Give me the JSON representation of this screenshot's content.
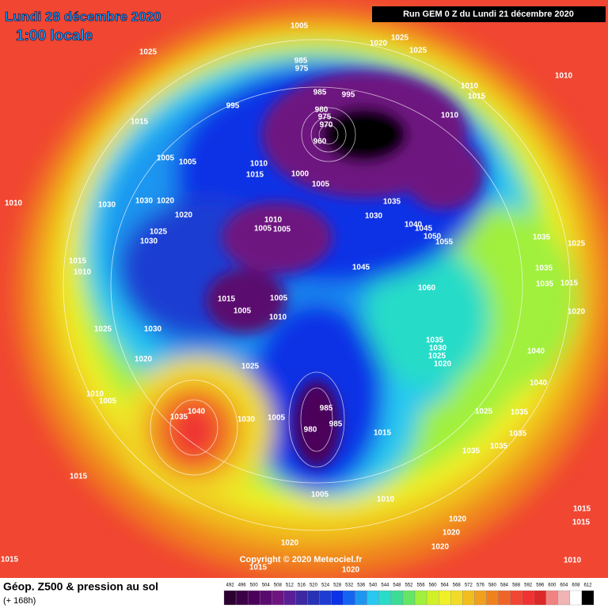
{
  "header": {
    "title": "Lundi 28 décembre 2020",
    "subtitle": "1:00 locale",
    "run": "Run GEM 0 Z du Lundi 21 décembre 2020"
  },
  "copyright": "Copyright © 2020 Meteociel.fr",
  "footer": {
    "title": "Géop. Z500 & pression au sol",
    "forecast": "(+ 168h)"
  },
  "colorbar": {
    "values": [
      492,
      496,
      500,
      504,
      508,
      512,
      516,
      520,
      524,
      528,
      532,
      536,
      540,
      544,
      548,
      552,
      556,
      560,
      564,
      568,
      572,
      576,
      580,
      584,
      588,
      592,
      596,
      600,
      604,
      608,
      612
    ],
    "colors": [
      "#2b0030",
      "#3c0046",
      "#4b005a",
      "#5a0a6e",
      "#6e1480",
      "#5a1e96",
      "#3c28a0",
      "#2832b4",
      "#1e3cd2",
      "#0a32e6",
      "#1464f0",
      "#1e96f0",
      "#28c8f0",
      "#28dcc8",
      "#3cdc96",
      "#64e664",
      "#a0f03c",
      "#d2f028",
      "#f0f028",
      "#f0dc28",
      "#f0be1e",
      "#f0a01e",
      "#f0821e",
      "#f06428",
      "#f04632",
      "#f03232",
      "#dc2828",
      "#f08282",
      "#f0b4b4",
      "#ffffff",
      "#000000"
    ]
  },
  "isobar_labels": [
    "1005",
    "1025",
    "1025",
    "1020",
    "1025",
    "985",
    "975",
    "1010",
    "1010",
    "1015",
    "985",
    "995",
    "995",
    "980",
    "975",
    "970",
    "960",
    "1015",
    "1010",
    "1005",
    "1005",
    "1010",
    "1015",
    "1000",
    "1005",
    "1035",
    "1030",
    "1010",
    "1030",
    "1030",
    "1020",
    "1020",
    "1010",
    "1005",
    "1005",
    "1040",
    "1045",
    "1050",
    "1055",
    "1025",
    "1030",
    "1035",
    "1025",
    "1015",
    "1010",
    "1045",
    "1035",
    "1035",
    "1015",
    "1060",
    "1015",
    "1005",
    "1005",
    "1010",
    "1020",
    "1025",
    "1030",
    "1035",
    "1030",
    "1025",
    "1040",
    "1020",
    "1025",
    "1020",
    "1010",
    "1005",
    "1040",
    "1040",
    "1035",
    "1030",
    "1005",
    "985",
    "980",
    "985",
    "1025",
    "1035",
    "1015",
    "1035",
    "1035",
    "1035",
    "1015",
    "1005",
    "1010",
    "1020",
    "1015",
    "1020",
    "1015",
    "1020",
    "1020",
    "1015",
    "1015",
    "1020",
    "1010"
  ]
}
